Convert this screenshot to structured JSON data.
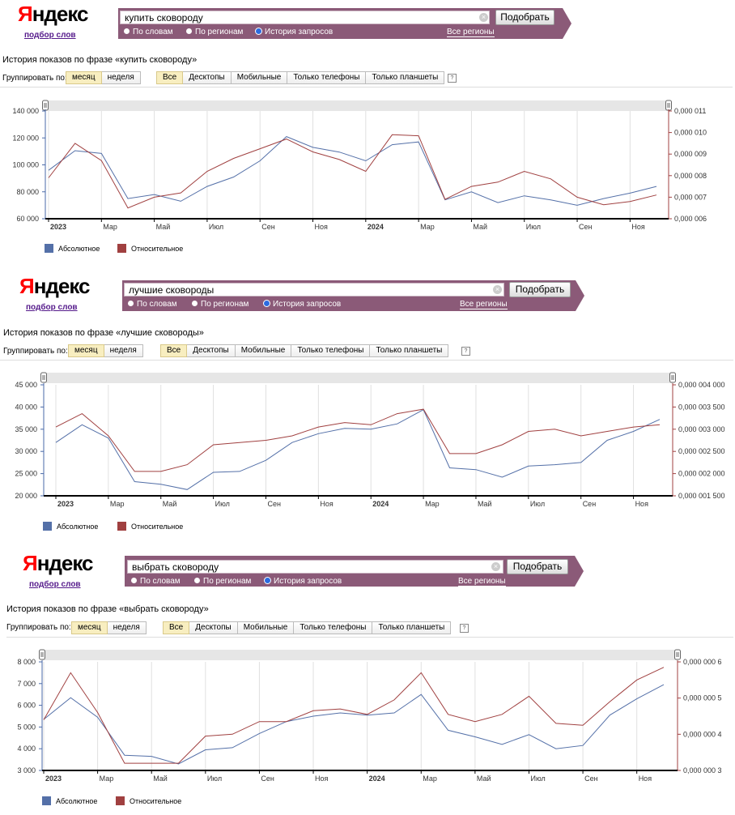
{
  "common": {
    "logo": "Яндекс",
    "logo_first": "Я",
    "logo_rest": "ндекс",
    "podbor": "подбор слов",
    "search_button": "Подобрать",
    "radio": [
      "По словам",
      "По регионам",
      "История запросов"
    ],
    "regions": "Все регионы",
    "group_label": "Группировать по:",
    "group_options": [
      "месяц",
      "неделя"
    ],
    "device_tabs": [
      "Все",
      "Десктопы",
      "Мобильные",
      "Только телефоны",
      "Только планшеты"
    ],
    "help": "?",
    "clear": "×",
    "legend": [
      "Абсолютное",
      "Относительное"
    ],
    "colors": {
      "absolute": "#5470a8",
      "relative": "#a04040",
      "bar": "#8b5a78",
      "tab_active": "#f8eec0"
    },
    "x_labels": [
      "2023",
      "Мар",
      "Май",
      "Июл",
      "Сен",
      "Ноя",
      "2024",
      "Мар",
      "Май",
      "Июл",
      "Сен",
      "Ноя"
    ],
    "x_bold": [
      0,
      6
    ]
  },
  "panels": [
    {
      "query": "купить сковороду",
      "title": "История показов по фразе «купить сковороду»"
    },
    {
      "query": "лучшие сковороды",
      "title": "История показов по фразе «лучшие сковороды»"
    },
    {
      "query": "выбрать сковороду",
      "title": "История показов по фразе «выбрать сковороду»"
    }
  ],
  "chart_data": [
    {
      "type": "line",
      "x": [
        "2023-01",
        "2023-02",
        "2023-03",
        "2023-04",
        "2023-05",
        "2023-06",
        "2023-07",
        "2023-08",
        "2023-09",
        "2023-10",
        "2023-11",
        "2023-12",
        "2024-01",
        "2024-02",
        "2024-03",
        "2024-04",
        "2024-05",
        "2024-06",
        "2024-07",
        "2024-08",
        "2024-09",
        "2024-10",
        "2024-11",
        "2024-12"
      ],
      "y_ticks_left": [
        "60 000",
        "80 000",
        "100 000",
        "120 000",
        "140 000"
      ],
      "y_ticks_right": [
        "0,000 006",
        "0,000 007",
        "0,000 008",
        "0,000 009",
        "0,000 010",
        "0,000 011"
      ],
      "ylim_left": [
        60000,
        140000
      ],
      "ylim_right": [
        6e-06,
        1.1e-05
      ],
      "series": [
        {
          "name": "Абсолютное",
          "axis": "left",
          "values": [
            96000,
            110500,
            108500,
            75000,
            78000,
            73000,
            84000,
            91000,
            103000,
            121000,
            113000,
            109500,
            103000,
            115000,
            117000,
            74000,
            80000,
            72000,
            77000,
            74000,
            70000,
            75000,
            79000,
            84000
          ]
        },
        {
          "name": "Относительное",
          "axis": "right",
          "values": [
            7.9e-06,
            9.5e-06,
            8.7e-06,
            6.5e-06,
            7e-06,
            7.2e-06,
            8.2e-06,
            8.8e-06,
            9.25e-06,
            9.7e-06,
            9.1e-06,
            8.75e-06,
            8.2e-06,
            9.9e-06,
            9.85e-06,
            6.9e-06,
            7.5e-06,
            7.7e-06,
            8.2e-06,
            7.85e-06,
            7e-06,
            6.65e-06,
            6.8e-06,
            7.1e-06
          ]
        }
      ],
      "legend_position": "bottom-left",
      "grid": true
    },
    {
      "type": "line",
      "x": [
        "2023-01",
        "2023-02",
        "2023-03",
        "2023-04",
        "2023-05",
        "2023-06",
        "2023-07",
        "2023-08",
        "2023-09",
        "2023-10",
        "2023-11",
        "2023-12",
        "2024-01",
        "2024-02",
        "2024-03",
        "2024-04",
        "2024-05",
        "2024-06",
        "2024-07",
        "2024-08",
        "2024-09",
        "2024-10",
        "2024-11",
        "2024-12"
      ],
      "y_ticks_left": [
        "20 000",
        "25 000",
        "30 000",
        "35 000",
        "40 000",
        "45 000"
      ],
      "y_ticks_right": [
        "0,000 001 500",
        "0,000 002 000",
        "0,000 002 500",
        "0,000 003 000",
        "0,000 003 500",
        "0,000 004 000"
      ],
      "ylim_left": [
        20000,
        45000
      ],
      "ylim_right": [
        1.5e-06,
        4e-06
      ],
      "series": [
        {
          "name": "Абсолютное",
          "axis": "left",
          "values": [
            32000,
            36000,
            33000,
            23200,
            22600,
            21400,
            25300,
            25500,
            28000,
            32000,
            34000,
            35200,
            35000,
            36200,
            39400,
            26300,
            25900,
            24200,
            26700,
            27000,
            27500,
            32500,
            34500,
            37200
          ]
        },
        {
          "name": "Относительное",
          "axis": "right",
          "values": [
            3.05e-06,
            3.35e-06,
            2.85e-06,
            2.05e-06,
            2.05e-06,
            2.2e-06,
            2.65e-06,
            2.7e-06,
            2.75e-06,
            2.85e-06,
            3.05e-06,
            3.15e-06,
            3.1e-06,
            3.35e-06,
            3.45e-06,
            2.45e-06,
            2.45e-06,
            2.65e-06,
            2.95e-06,
            3e-06,
            2.85e-06,
            2.95e-06,
            3.05e-06,
            3.1e-06
          ]
        }
      ],
      "legend_position": "bottom-left",
      "grid": true
    },
    {
      "type": "line",
      "x": [
        "2023-01",
        "2023-02",
        "2023-03",
        "2023-04",
        "2023-05",
        "2023-06",
        "2023-07",
        "2023-08",
        "2023-09",
        "2023-10",
        "2023-11",
        "2023-12",
        "2024-01",
        "2024-02",
        "2024-03",
        "2024-04",
        "2024-05",
        "2024-06",
        "2024-07",
        "2024-08",
        "2024-09",
        "2024-10",
        "2024-11",
        "2024-12"
      ],
      "y_ticks_left": [
        "3 000",
        "4 000",
        "5 000",
        "6 000",
        "7 000",
        "8 000"
      ],
      "y_ticks_right": [
        "0,000 000 3",
        "0,000 000 4",
        "0,000 000 5",
        "0,000 000 6"
      ],
      "ylim_left": [
        3000,
        8000
      ],
      "ylim_right": [
        3e-07,
        6e-07
      ],
      "series": [
        {
          "name": "Абсолютное",
          "axis": "left",
          "values": [
            5350,
            6350,
            5450,
            3700,
            3650,
            3300,
            3950,
            4050,
            4700,
            5250,
            5500,
            5650,
            5550,
            5650,
            6500,
            4850,
            4550,
            4200,
            4650,
            4000,
            4150,
            5550,
            6300,
            6950
          ]
        },
        {
          "name": "Относительное",
          "axis": "right",
          "values": [
            4.4e-07,
            5.7e-07,
            4.6e-07,
            3.2e-07,
            3.2e-07,
            3.2e-07,
            3.95e-07,
            4e-07,
            4.35e-07,
            4.35e-07,
            4.65e-07,
            4.7e-07,
            4.55e-07,
            4.95e-07,
            5.7e-07,
            4.55e-07,
            4.35e-07,
            4.55e-07,
            5.05e-07,
            4.3e-07,
            4.25e-07,
            4.9e-07,
            5.5e-07,
            5.85e-07
          ]
        }
      ],
      "legend_position": "bottom-left",
      "grid": true
    }
  ]
}
